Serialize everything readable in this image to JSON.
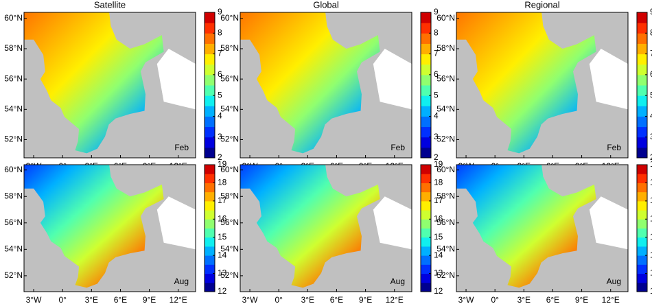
{
  "columns": [
    "Satellite",
    "Global",
    "Regional"
  ],
  "rows": [
    {
      "month": "Feb",
      "colorbar": {
        "lim": [
          2,
          9
        ],
        "ticks": [
          2,
          3,
          4,
          5,
          6,
          7,
          8,
          9
        ]
      }
    },
    {
      "month": "Aug",
      "colorbar": {
        "lim": [
          12,
          19
        ],
        "ticks": [
          12,
          13,
          14,
          15,
          16,
          17,
          18,
          19
        ]
      }
    }
  ],
  "lat_ticks": [
    {
      "value": 52,
      "label": "52°N"
    },
    {
      "value": 54,
      "label": "54°N"
    },
    {
      "value": 56,
      "label": "56°N"
    },
    {
      "value": 58,
      "label": "58°N"
    },
    {
      "value": 60,
      "label": "60°N"
    }
  ],
  "lon_ticks": [
    {
      "value": -3,
      "label": "3°W"
    },
    {
      "value": 0,
      "label": "0°"
    },
    {
      "value": 3,
      "label": "3°E"
    },
    {
      "value": 6,
      "label": "6°E"
    },
    {
      "value": 9,
      "label": "9°E"
    },
    {
      "value": 12,
      "label": "12°E"
    }
  ],
  "colormap": [
    "#00008f",
    "#0000df",
    "#0030ff",
    "#0070ff",
    "#00b0ff",
    "#10efef",
    "#50ffaf",
    "#90ff6f",
    "#cfff30",
    "#ffef00",
    "#ffaf00",
    "#ff7000",
    "#ff3000",
    "#d00000"
  ]
}
